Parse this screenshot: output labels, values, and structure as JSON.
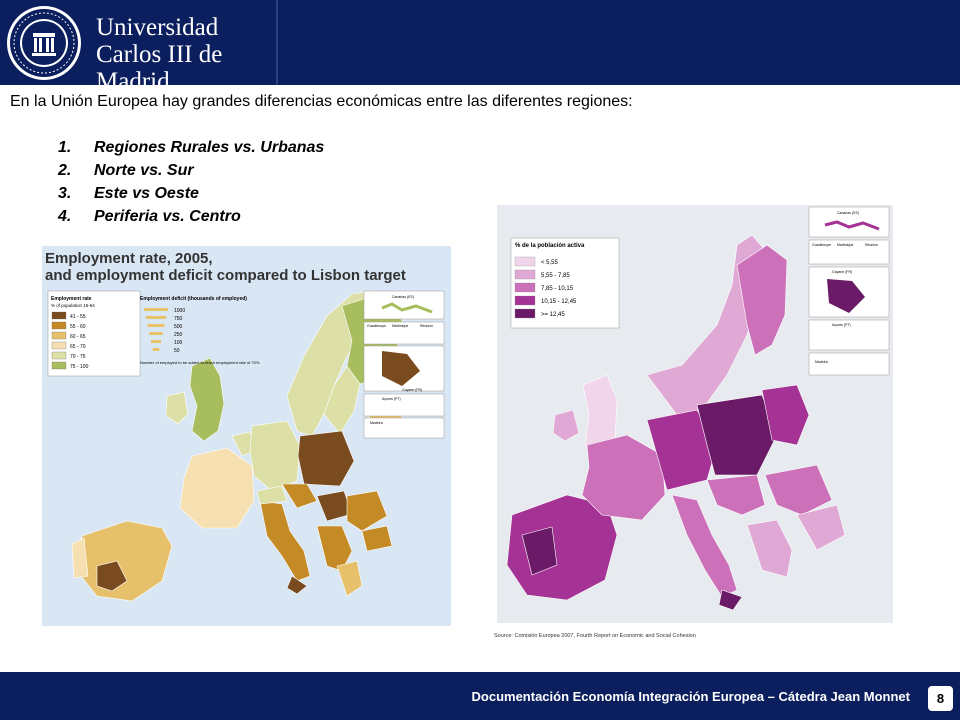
{
  "header": {
    "logo_name": "Universidad Carlos III de Madrid",
    "uni_line1": "Universidad",
    "uni_line2": "Carlos III de Madrid"
  },
  "intro": "En la Unión Europea hay grandes diferencias económicas entre las diferentes regiones:",
  "points": [
    {
      "num": "1.",
      "text": "Regiones Rurales vs. Urbanas"
    },
    {
      "num": "2.",
      "text": "Norte vs. Sur"
    },
    {
      "num": "3.",
      "text": "Este vs Oeste"
    },
    {
      "num": "4.",
      "text": "Periferia vs. Centro"
    }
  ],
  "left_map": {
    "title_line1": "Employment rate, 2005,",
    "title_line2": "and employment deficit compared to Lisbon target",
    "legend_title1": "Employment rate",
    "legend_title2": "% of population 15-64",
    "legend": [
      {
        "label": "41 - 55",
        "color": "#7a4b1e"
      },
      {
        "label": "55 - 60",
        "color": "#c48a26"
      },
      {
        "label": "60 - 65",
        "color": "#e7c06b"
      },
      {
        "label": "65 - 70",
        "color": "#f6e0b1"
      },
      {
        "label": "70 - 75",
        "color": "#dcdfa6"
      },
      {
        "label": "75 - 100",
        "color": "#a8bd5e"
      }
    ],
    "deficit_title": "Employment deficit (thousands of employed)",
    "deficit_values": [
      "1000",
      "750",
      "500",
      "250",
      "100",
      "50"
    ],
    "deficit_note": "Number of employed to be added to reach employment rate of 70%",
    "insets": [
      "Canarias (ES)",
      "Guadeloupe",
      "Martinique",
      "Réunion",
      "Guyane (FR)",
      "Açores (PT)",
      "Madeira"
    ]
  },
  "right_map": {
    "legend_title": "% de la población activa",
    "legend": [
      {
        "label": "< 5,55",
        "color": "#f1d6eb"
      },
      {
        "label": "5,55 - 7,85",
        "color": "#e0a8d4"
      },
      {
        "label": "7,85 - 10,15",
        "color": "#cc70ba"
      },
      {
        "label": "10,15 - 12,45",
        "color": "#a53395"
      },
      {
        "label": ">= 12,45",
        "color": "#6a1a66"
      }
    ],
    "insets": [
      "Canarias (ES)",
      "Guadeloupe",
      "Martinique",
      "Réunion",
      "Guyane (FR)",
      "Açores (PT)",
      "Madeira"
    ]
  },
  "source": "Source: Comisión Europea 2007, Fourth Report on Economic and Social Cohesion",
  "footer": {
    "text": "Documentación Economía Integración Europea – Cátedra Jean Monnet",
    "page": "8"
  }
}
